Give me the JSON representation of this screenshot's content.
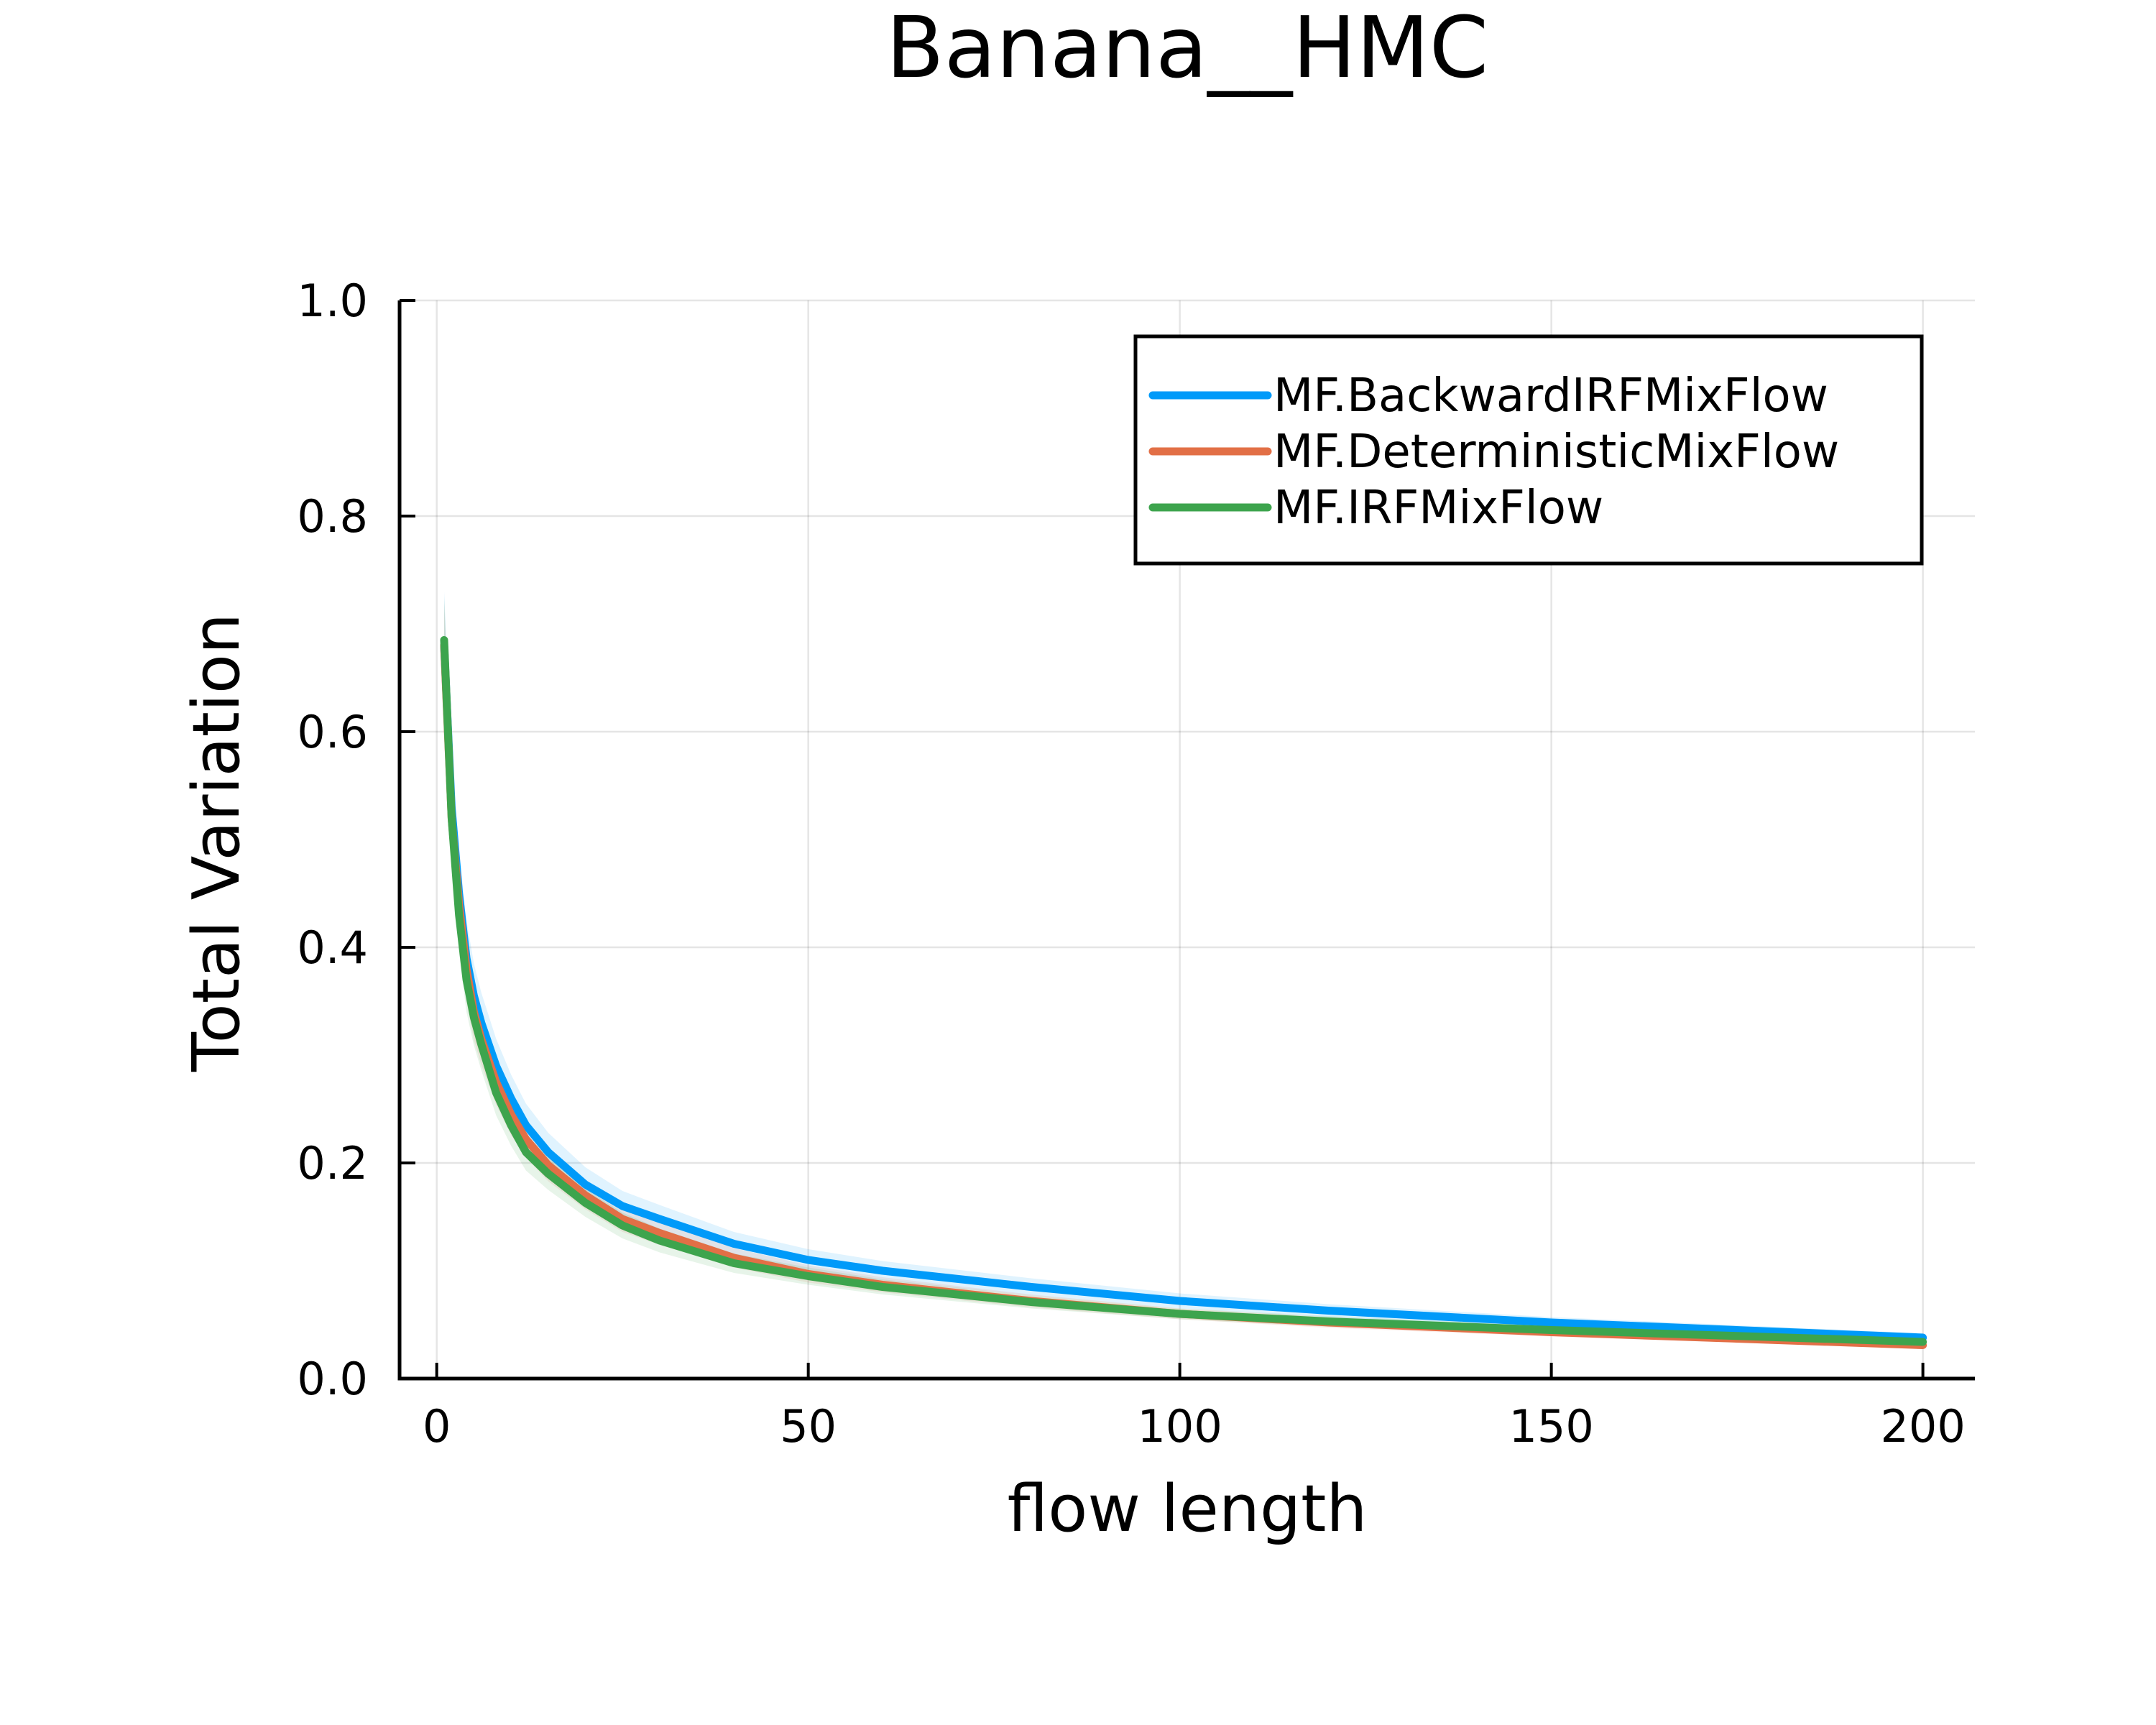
{
  "chart_data": {
    "type": "line",
    "title": "Banana__HMC",
    "xlabel": "flow length",
    "ylabel": "Total Variation",
    "xlim": [
      -5,
      207
    ],
    "ylim": [
      0,
      1
    ],
    "xticks": [
      0,
      50,
      100,
      150,
      200
    ],
    "yticks": [
      0.0,
      0.2,
      0.4,
      0.6,
      0.8,
      1.0
    ],
    "xtick_labels": [
      "0",
      "50",
      "100",
      "150",
      "200"
    ],
    "ytick_labels": [
      "0.0",
      "0.2",
      "0.4",
      "0.6",
      "0.8",
      "1.0"
    ],
    "grid": true,
    "legend_position": "top-right",
    "x": [
      1,
      2,
      3,
      4,
      5,
      6,
      8,
      10,
      12,
      15,
      20,
      25,
      30,
      40,
      50,
      60,
      80,
      100,
      120,
      150,
      200
    ],
    "series": [
      {
        "name": "MF.BackwardIRFMixFlow",
        "color": "#009af9",
        "values": [
          0.68,
          0.53,
          0.45,
          0.39,
          0.355,
          0.33,
          0.29,
          0.26,
          0.235,
          0.21,
          0.18,
          0.16,
          0.148,
          0.125,
          0.11,
          0.1,
          0.085,
          0.072,
          0.063,
          0.052,
          0.038
        ],
        "band": [
          0.05,
          0.05,
          0.04,
          0.035,
          0.03,
          0.028,
          0.025,
          0.022,
          0.02,
          0.018,
          0.016,
          0.014,
          0.013,
          0.011,
          0.01,
          0.009,
          0.008,
          0.007,
          0.006,
          0.005,
          0.004
        ]
      },
      {
        "name": "MF.DeterministicMixFlow",
        "color": "#e26f46",
        "values": [
          0.68,
          0.52,
          0.44,
          0.38,
          0.34,
          0.315,
          0.275,
          0.245,
          0.222,
          0.198,
          0.17,
          0.148,
          0.135,
          0.112,
          0.097,
          0.087,
          0.072,
          0.06,
          0.052,
          0.043,
          0.031
        ],
        "band": [
          0.04,
          0.04,
          0.035,
          0.03,
          0.026,
          0.024,
          0.021,
          0.019,
          0.017,
          0.015,
          0.013,
          0.012,
          0.011,
          0.009,
          0.008,
          0.007,
          0.006,
          0.005,
          0.005,
          0.004,
          0.003
        ]
      },
      {
        "name": "MF.IRFMixFlow",
        "color": "#3da44d",
        "values": [
          0.685,
          0.52,
          0.43,
          0.37,
          0.335,
          0.31,
          0.265,
          0.235,
          0.21,
          0.19,
          0.163,
          0.142,
          0.128,
          0.107,
          0.095,
          0.085,
          0.071,
          0.06,
          0.053,
          0.045,
          0.034
        ],
        "band": [
          0.04,
          0.04,
          0.035,
          0.03,
          0.026,
          0.024,
          0.021,
          0.019,
          0.017,
          0.015,
          0.013,
          0.012,
          0.011,
          0.009,
          0.008,
          0.007,
          0.006,
          0.005,
          0.005,
          0.004,
          0.003
        ]
      }
    ]
  }
}
